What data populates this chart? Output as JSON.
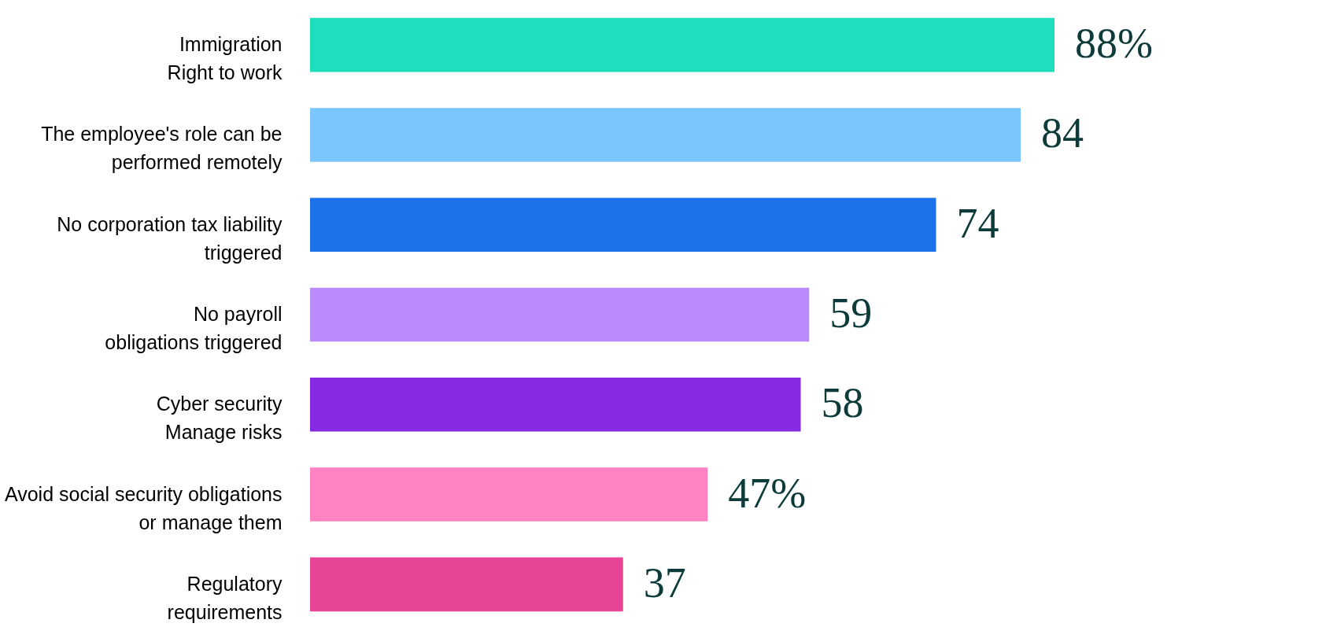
{
  "chart_data": {
    "type": "bar",
    "orientation": "horizontal",
    "categories": [
      "Immigration\nRight to work",
      "The employee's role can be\nperformed remotely",
      "No corporation tax liability\ntriggered",
      "No payroll\nobligations triggered",
      "Cyber security\nManage risks",
      "Avoid social security obligations\nor manage them",
      "Regulatory\nrequirements"
    ],
    "values": [
      88,
      84,
      74,
      59,
      58,
      47,
      37
    ],
    "value_labels": [
      "88%",
      "84",
      "74",
      "59",
      "58",
      "47%",
      "37"
    ],
    "colors": [
      "#1fdebe",
      "#7bc6fd",
      "#1c72e9",
      "#b98bfd",
      "#8629e2",
      "#ff82c2",
      "#e84597"
    ],
    "grid": false,
    "legend": false
  }
}
